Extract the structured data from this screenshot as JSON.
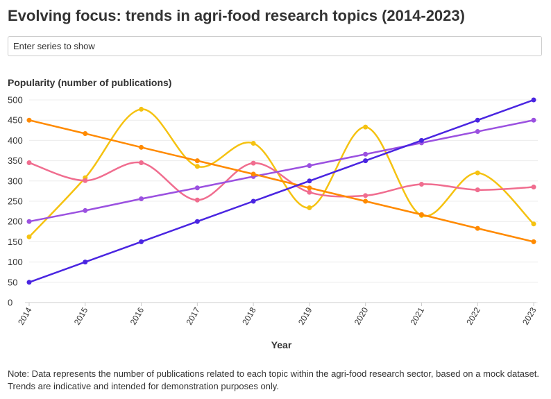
{
  "page": {
    "title": "Evolving focus: trends in agri-food research topics (2014-2023)",
    "search": {
      "placeholder": "Enter series to show"
    },
    "note": "Note: Data represents the number of publications related to each topic within the agri-food research sector, based on a mock dataset. Trends are indicative and intended for demonstration purposes only."
  },
  "chart_data": {
    "type": "line",
    "title": "",
    "ylabel": "Popularity (number of publications)",
    "xlabel": "Year",
    "x": [
      "2014",
      "2015",
      "2016",
      "2017",
      "2018",
      "2019",
      "2020",
      "2021",
      "2022",
      "2023"
    ],
    "ylim": [
      0,
      500
    ],
    "yticks": [
      0,
      50,
      100,
      150,
      200,
      250,
      300,
      350,
      400,
      450,
      500
    ],
    "grid": true,
    "legend": "none",
    "series": [
      {
        "color": "#f5c211",
        "smooth": true,
        "values": [
          162,
          308,
          477,
          336,
          393,
          234,
          433,
          215,
          320,
          194
        ]
      },
      {
        "color": "#f06d8f",
        "smooth": true,
        "values": [
          345,
          301,
          345,
          253,
          344,
          272,
          264,
          292,
          278,
          285
        ]
      },
      {
        "color": "#9b51e0",
        "smooth": false,
        "values": [
          200,
          227,
          256,
          283,
          311,
          338,
          366,
          394,
          422,
          450
        ]
      },
      {
        "color": "#ff8a00",
        "smooth": false,
        "values": [
          450,
          417,
          383,
          350,
          317,
          283,
          250,
          217,
          183,
          150
        ]
      },
      {
        "color": "#4a25e1",
        "smooth": false,
        "values": [
          50,
          100,
          150,
          200,
          250,
          300,
          350,
          400,
          450,
          500
        ]
      }
    ]
  }
}
